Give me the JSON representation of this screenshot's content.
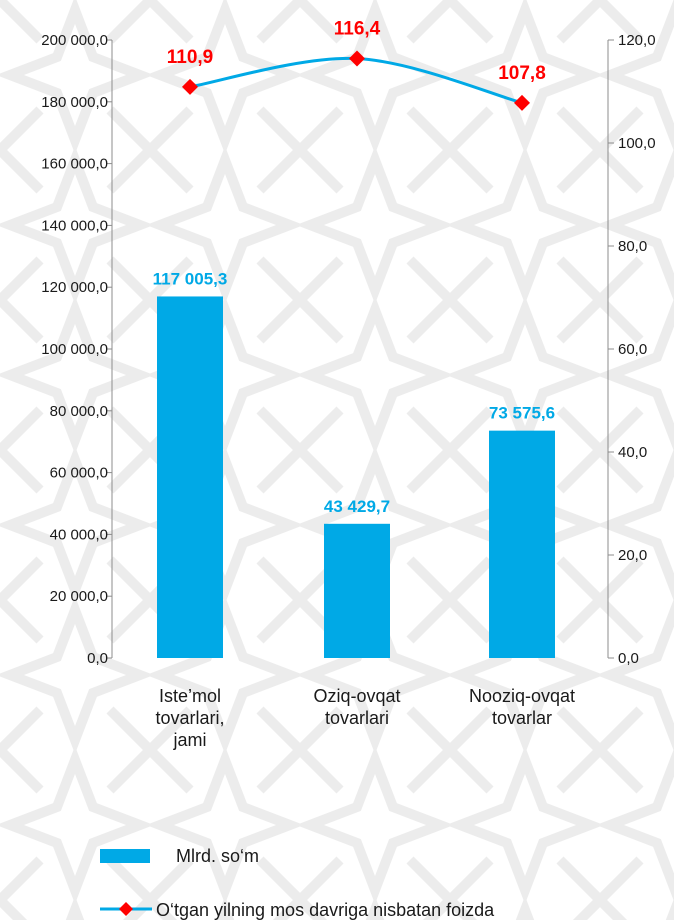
{
  "chart_data": {
    "type": "bar",
    "categories": [
      [
        "Iste’mol",
        "tovarlari,",
        "jami"
      ],
      [
        "Oziq-ovqat",
        "tovarlari"
      ],
      [
        "Nooziq-ovqat",
        "tovarlar"
      ]
    ],
    "series": [
      {
        "name": "Mlrd. so‘m",
        "type": "bar",
        "axis": "left",
        "values": [
          117005.3,
          43429.7,
          73575.6
        ],
        "labels": [
          "117 005,3",
          "43 429,7",
          "73 575,6"
        ],
        "color": "#00a9e6"
      },
      {
        "name": "O‘tgan yilning mos davriga nisbatan foizda",
        "type": "line",
        "axis": "right",
        "values": [
          110.9,
          116.4,
          107.8
        ],
        "labels": [
          "110,9",
          "116,4",
          "107,8"
        ],
        "color": "#00a9e6",
        "marker_color": "#ff0000"
      }
    ],
    "y_left": {
      "ylim": [
        0,
        200000
      ],
      "ticks": [
        0,
        20000,
        40000,
        60000,
        80000,
        100000,
        120000,
        140000,
        160000,
        180000,
        200000
      ],
      "tick_labels": [
        "0,0",
        "20 000,0",
        "40 000,0",
        "60 000,0",
        "80 000,0",
        "100 000,0",
        "120 000,0",
        "140 000,0",
        "160 000,0",
        "180 000,0",
        "200 000,0"
      ]
    },
    "y_right": {
      "ylim": [
        0,
        120
      ],
      "ticks": [
        0,
        20,
        40,
        60,
        80,
        100,
        120
      ],
      "tick_labels": [
        "0,0",
        "20,0",
        "40,0",
        "60,0",
        "80,0",
        "100,0",
        "120,0"
      ]
    },
    "grid": false,
    "legend_position": "bottom"
  },
  "colors": {
    "bar": "#00a9e6",
    "line": "#00a9e6",
    "marker": "#ff0000",
    "line_label": "#ff0000",
    "bar_label": "#00a9e6",
    "background_pattern": "#ebebeb"
  }
}
